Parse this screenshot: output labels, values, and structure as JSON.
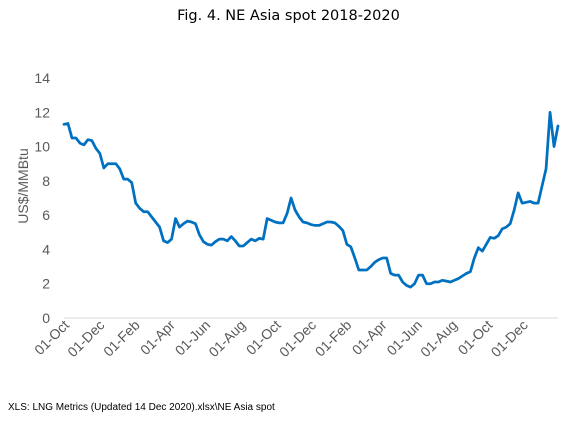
{
  "chart_data": {
    "type": "line",
    "title": "Fig. 4. NE Asia spot 2018-2020",
    "xlabel": "",
    "ylabel": "US$/MMBtu",
    "ylim": [
      0,
      14
    ],
    "y_ticks": [
      0,
      2,
      4,
      6,
      8,
      10,
      12,
      14
    ],
    "x_tick_labels": [
      "01-Oct",
      "01-Dec",
      "01-Feb",
      "01-Apr",
      "01-Jun",
      "01-Aug",
      "01-Oct",
      "01-Dec",
      "01-Feb",
      "01-Apr",
      "01-Jun",
      "01-Aug",
      "01-Oct",
      "01-Dec"
    ],
    "grid": false,
    "legend": "none",
    "line_color": "#0070C0",
    "series": [
      {
        "values": [
          11.3,
          11.35,
          10.5,
          10.5,
          10.2,
          10.1,
          10.4,
          10.35,
          9.9,
          9.6,
          8.75,
          9.0,
          9.0,
          9.0,
          8.7,
          8.1,
          8.1,
          7.9,
          6.7,
          6.4,
          6.2,
          6.2,
          5.9,
          5.6,
          5.3,
          4.5,
          4.4,
          4.6,
          5.8,
          5.3,
          5.5,
          5.65,
          5.6,
          5.5,
          4.85,
          4.45,
          4.3,
          4.25,
          4.45,
          4.6,
          4.6,
          4.5,
          4.75,
          4.5,
          4.2,
          4.2,
          4.4,
          4.6,
          4.5,
          4.65,
          4.6,
          5.8,
          5.7,
          5.6,
          5.55,
          5.55,
          6.1,
          7.0,
          6.3,
          5.9,
          5.6,
          5.55,
          5.45,
          5.4,
          5.4,
          5.5,
          5.6,
          5.6,
          5.55,
          5.35,
          5.1,
          4.3,
          4.15,
          3.5,
          2.8,
          2.8,
          2.8,
          3.0,
          3.25,
          3.4,
          3.5,
          3.5,
          2.6,
          2.5,
          2.5,
          2.1,
          1.9,
          1.8,
          2.0,
          2.5,
          2.5,
          2.0,
          2.0,
          2.1,
          2.1,
          2.2,
          2.15,
          2.1,
          2.2,
          2.3,
          2.45,
          2.6,
          2.7,
          3.5,
          4.1,
          3.9,
          4.3,
          4.7,
          4.65,
          4.8,
          5.2,
          5.3,
          5.5,
          6.3,
          7.3,
          6.7,
          6.75,
          6.8,
          6.7,
          6.7,
          7.7,
          8.7,
          12.0,
          10.0,
          11.2
        ]
      }
    ]
  },
  "footer": {
    "source": "XLS: LNG Metrics (Updated 14 Dec 2020).xlsx\\NE Asia spot"
  }
}
